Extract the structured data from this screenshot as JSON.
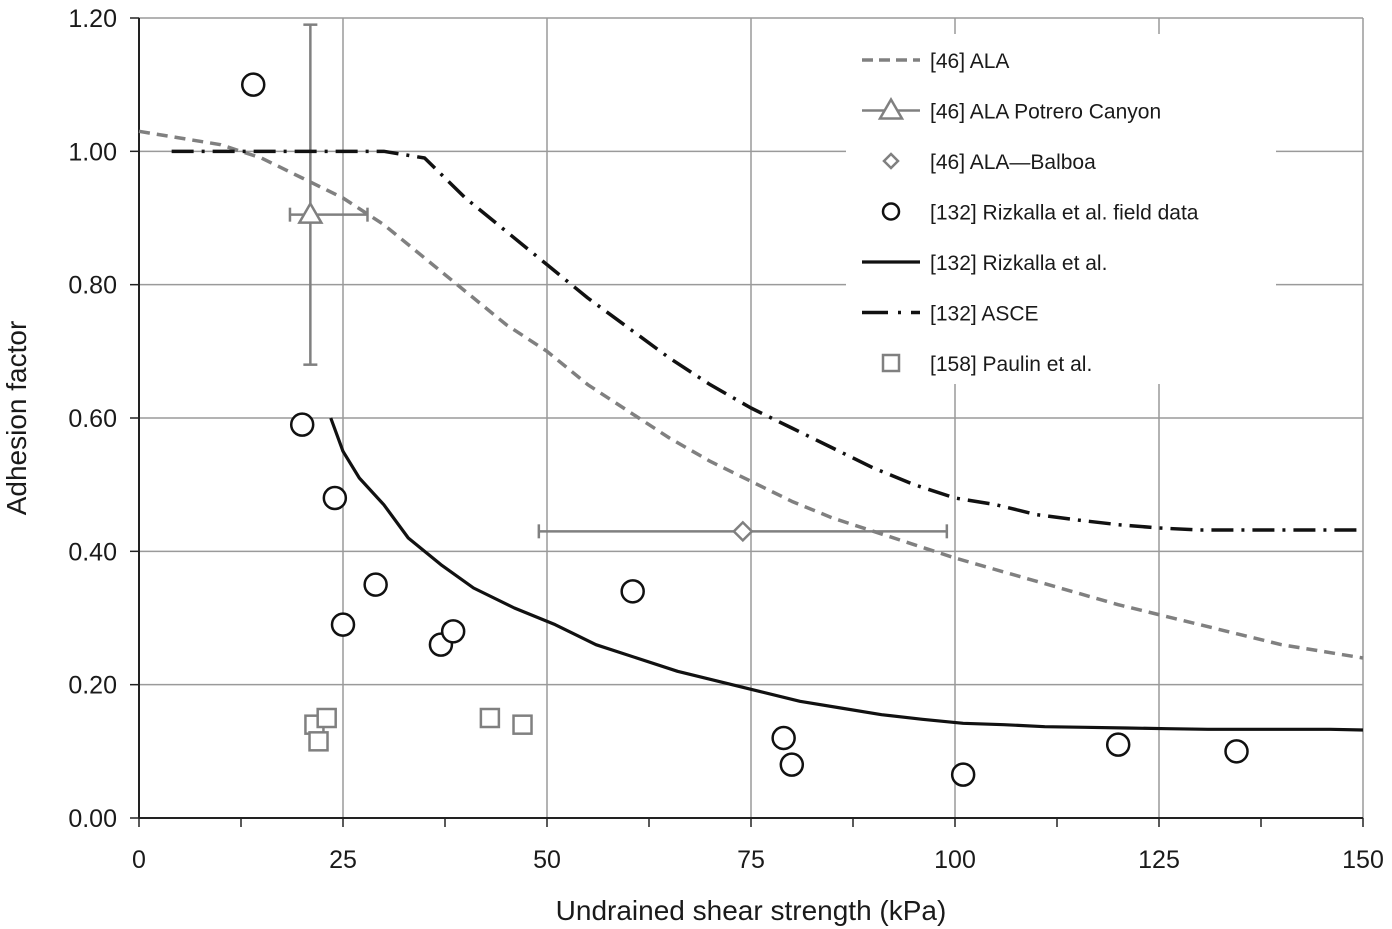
{
  "chart_data": {
    "type": "scatter",
    "xlabel": "Undrained shear strength (kPa)",
    "ylabel": "Adhesion factor",
    "xlim": [
      0,
      150
    ],
    "ylim": [
      0,
      1.2
    ],
    "x_ticks": [
      "0",
      "25",
      "50",
      "75",
      "100",
      "125",
      "150"
    ],
    "y_ticks": [
      "0.00",
      "0.20",
      "0.40",
      "0.60",
      "0.80",
      "1.00",
      "1.20"
    ],
    "grid": true,
    "legend_position": "top-right",
    "series": [
      {
        "name": "[46] ALA",
        "kind": "line",
        "style": "dashed",
        "color": "#808080",
        "x": [
          0,
          5,
          10,
          15,
          20,
          25,
          30,
          35,
          40,
          45,
          50,
          55,
          60,
          65,
          70,
          75,
          80,
          85,
          90,
          95,
          100,
          110,
          120,
          130,
          140,
          150
        ],
        "y": [
          1.03,
          1.02,
          1.01,
          0.99,
          0.96,
          0.93,
          0.89,
          0.84,
          0.79,
          0.74,
          0.7,
          0.65,
          0.61,
          0.57,
          0.535,
          0.505,
          0.475,
          0.45,
          0.43,
          0.41,
          0.39,
          0.355,
          0.32,
          0.29,
          0.26,
          0.24
        ]
      },
      {
        "name": "[46] ALA Potrero Canyon",
        "kind": "point-with-error",
        "marker": "triangle",
        "color": "#808080",
        "x": [
          21
        ],
        "y": [
          0.905
        ],
        "xerr": [
          [
            18.5,
            28
          ]
        ],
        "yerr": [
          [
            0.68,
            1.19
          ]
        ]
      },
      {
        "name": "[46] ALA—Balboa",
        "kind": "point-with-error",
        "marker": "diamond",
        "color": "#808080",
        "x": [
          74
        ],
        "y": [
          0.43
        ],
        "xerr": [
          [
            49,
            99
          ]
        ],
        "yerr": []
      },
      {
        "name": "[132] Rizkalla et al. field data",
        "kind": "scatter",
        "marker": "circle",
        "color": "#111111",
        "x": [
          14,
          20,
          24,
          25,
          29,
          37,
          38.5,
          60.5,
          79,
          80,
          101,
          120,
          134.5
        ],
        "y": [
          1.1,
          0.59,
          0.48,
          0.29,
          0.35,
          0.26,
          0.28,
          0.34,
          0.12,
          0.08,
          0.065,
          0.11,
          0.1
        ]
      },
      {
        "name": "[132] Rizkalla et al.",
        "kind": "line",
        "style": "solid",
        "color": "#111111",
        "x": [
          23.5,
          25,
          27,
          30,
          33,
          37,
          41,
          46,
          51,
          56,
          61,
          66,
          71,
          76,
          81,
          86,
          91,
          96,
          101,
          106,
          111,
          116,
          121,
          126,
          131,
          136,
          141,
          146,
          150
        ],
        "y": [
          0.6,
          0.55,
          0.51,
          0.47,
          0.42,
          0.38,
          0.345,
          0.315,
          0.29,
          0.26,
          0.24,
          0.22,
          0.205,
          0.19,
          0.175,
          0.165,
          0.155,
          0.148,
          0.142,
          0.14,
          0.137,
          0.136,
          0.135,
          0.134,
          0.133,
          0.133,
          0.133,
          0.133,
          0.132
        ]
      },
      {
        "name": "[132] ASCE",
        "kind": "line",
        "style": "dash-dot",
        "color": "#111111",
        "x": [
          4,
          10,
          20,
          30,
          35,
          40,
          45,
          50,
          55,
          60,
          65,
          70,
          75,
          80,
          85,
          90,
          95,
          100,
          105,
          110,
          115,
          120,
          125,
          130,
          135,
          140,
          150
        ],
        "y": [
          1.0,
          1.0,
          1.0,
          1.0,
          0.99,
          0.93,
          0.88,
          0.83,
          0.78,
          0.735,
          0.69,
          0.65,
          0.615,
          0.585,
          0.555,
          0.525,
          0.5,
          0.48,
          0.47,
          0.455,
          0.447,
          0.44,
          0.435,
          0.432,
          0.432,
          0.432,
          0.432
        ]
      },
      {
        "name": "[158] Paulin et al.",
        "kind": "scatter",
        "marker": "square",
        "color": "#808080",
        "x": [
          21.5,
          22,
          23,
          43,
          47
        ],
        "y": [
          0.14,
          0.115,
          0.15,
          0.15,
          0.14
        ]
      }
    ]
  }
}
